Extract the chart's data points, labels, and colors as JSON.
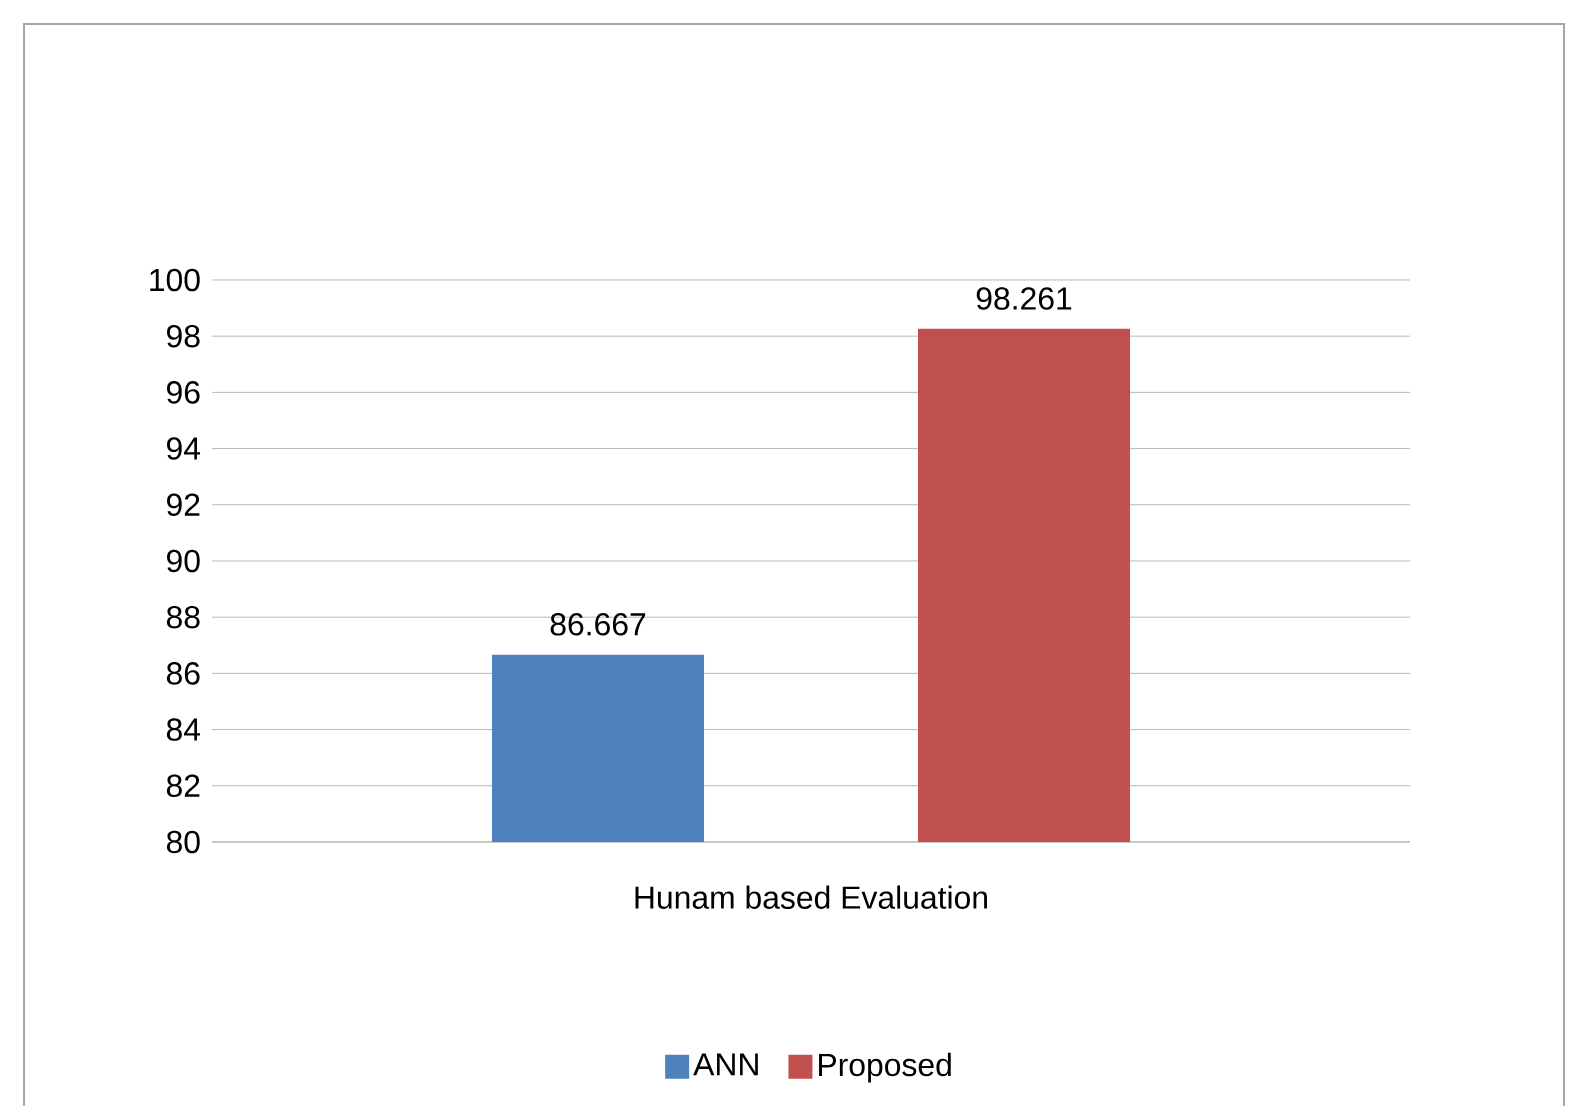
{
  "chart_data": {
    "type": "bar",
    "categories": [
      "Hunam based Evaluation"
    ],
    "series": [
      {
        "name": "ANN",
        "color": "#4f81bd",
        "values": [
          86.667
        ]
      },
      {
        "name": "Proposed",
        "color": "#c0504d",
        "values": [
          98.261
        ]
      }
    ],
    "ylim": [
      80,
      100
    ],
    "yticks": [
      80,
      82,
      84,
      86,
      88,
      90,
      92,
      94,
      96,
      98,
      100
    ],
    "grid": "y",
    "legend": "bottom",
    "data_labels": true
  }
}
